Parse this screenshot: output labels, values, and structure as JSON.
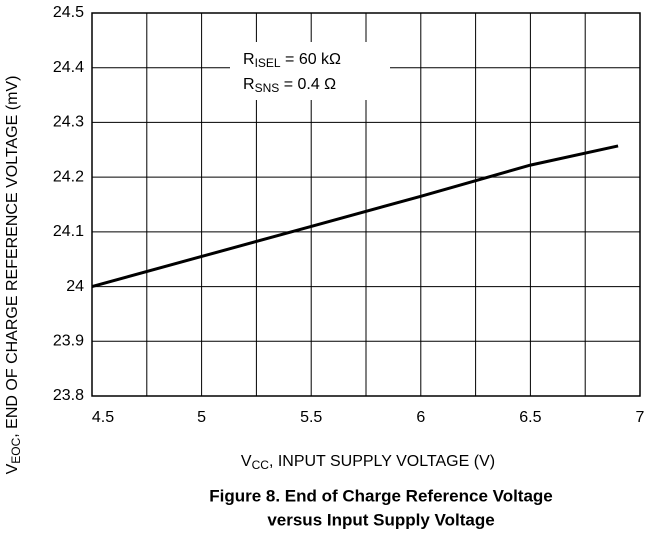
{
  "chart_data": {
    "type": "line",
    "x": [
      4.5,
      5,
      5.5,
      6,
      6.5,
      6.9
    ],
    "values": [
      24.0,
      24.055,
      24.11,
      24.165,
      24.222,
      24.257
    ],
    "color": "#000000",
    "xlim": [
      4.5,
      7
    ],
    "xticks": [
      4.5,
      5,
      5.5,
      6,
      6.5,
      7
    ],
    "xgrid": [
      4.75,
      5.25,
      5.75,
      6.25,
      6.75
    ],
    "ylim": [
      23.8,
      24.5
    ],
    "yticks": [
      23.8,
      23.9,
      24,
      24.1,
      24.2,
      24.3,
      24.4,
      24.5
    ],
    "grid": true,
    "xlabel": {
      "main": "V",
      "sub": "CC",
      "rest": ", INPUT SUPPLY VOLTAGE (V)"
    },
    "ylabel": {
      "main": "V",
      "sub": "EOC",
      "rest": ", END OF CHARGE REFERENCE VOLTAGE (mV)"
    },
    "annotations": [
      {
        "main": "R",
        "sub": "ISEL",
        "rest": " = 60 kΩ"
      },
      {
        "main": "R",
        "sub": "SNS",
        "rest": " = 0.4 Ω"
      }
    ],
    "caption": [
      "Figure 8. End of Charge Reference Voltage",
      "versus Input Supply Voltage"
    ]
  }
}
